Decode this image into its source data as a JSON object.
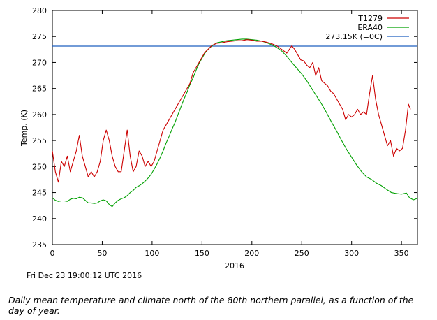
{
  "chart_data": {
    "type": "line",
    "title": "",
    "xlabel": "2016",
    "ylabel": "Temp. (K)",
    "xlim": [
      0,
      366
    ],
    "ylim": [
      235,
      280
    ],
    "xticks": [
      0,
      50,
      100,
      150,
      200,
      250,
      300,
      350
    ],
    "yticks": [
      235,
      240,
      245,
      250,
      255,
      260,
      265,
      270,
      275,
      280
    ],
    "grid": false,
    "legend_position": "top-right",
    "reference_line": {
      "name": "273.15K (=0C)",
      "value": 273.15,
      "color": "#1f5fbf"
    },
    "series": [
      {
        "name": "T1279",
        "color": "#cc0000",
        "points": [
          [
            0,
            253
          ],
          [
            3,
            249
          ],
          [
            6,
            247
          ],
          [
            9,
            251
          ],
          [
            12,
            250
          ],
          [
            15,
            252
          ],
          [
            18,
            249
          ],
          [
            21,
            251
          ],
          [
            24,
            253
          ],
          [
            27,
            256
          ],
          [
            30,
            252
          ],
          [
            33,
            250
          ],
          [
            36,
            248
          ],
          [
            39,
            249
          ],
          [
            42,
            248
          ],
          [
            45,
            249
          ],
          [
            48,
            251
          ],
          [
            51,
            255
          ],
          [
            54,
            257
          ],
          [
            57,
            255
          ],
          [
            60,
            252
          ],
          [
            63,
            250
          ],
          [
            66,
            249
          ],
          [
            69,
            249
          ],
          [
            72,
            253
          ],
          [
            75,
            257
          ],
          [
            78,
            252
          ],
          [
            81,
            249
          ],
          [
            84,
            250
          ],
          [
            87,
            253
          ],
          [
            90,
            252
          ],
          [
            93,
            250
          ],
          [
            96,
            251
          ],
          [
            99,
            250
          ],
          [
            102,
            251
          ],
          [
            105,
            253
          ],
          [
            108,
            255
          ],
          [
            111,
            257
          ],
          [
            114,
            258
          ],
          [
            117,
            259
          ],
          [
            120,
            260
          ],
          [
            123,
            261
          ],
          [
            126,
            262
          ],
          [
            129,
            263
          ],
          [
            132,
            264
          ],
          [
            135,
            265
          ],
          [
            138,
            266
          ],
          [
            141,
            268
          ],
          [
            144,
            269
          ],
          [
            147,
            270
          ],
          [
            150,
            271
          ],
          [
            153,
            272
          ],
          [
            156,
            272.5
          ],
          [
            160,
            273.3
          ],
          [
            165,
            273.7
          ],
          [
            170,
            273.8
          ],
          [
            175,
            274
          ],
          [
            180,
            274.1
          ],
          [
            185,
            274.2
          ],
          [
            190,
            274.2
          ],
          [
            195,
            274.4
          ],
          [
            200,
            274.3
          ],
          [
            205,
            274.1
          ],
          [
            210,
            274.1
          ],
          [
            215,
            273.9
          ],
          [
            220,
            273.6
          ],
          [
            225,
            273.2
          ],
          [
            230,
            272.5
          ],
          [
            235,
            271.8
          ],
          [
            240,
            273.2
          ],
          [
            243,
            272.5
          ],
          [
            246,
            271.5
          ],
          [
            249,
            270.5
          ],
          [
            252,
            270.3
          ],
          [
            255,
            269.5
          ],
          [
            258,
            269
          ],
          [
            261,
            270
          ],
          [
            264,
            267.5
          ],
          [
            267,
            269
          ],
          [
            270,
            266.5
          ],
          [
            273,
            266
          ],
          [
            276,
            265.5
          ],
          [
            279,
            264.5
          ],
          [
            282,
            264
          ],
          [
            285,
            263
          ],
          [
            288,
            262
          ],
          [
            291,
            261
          ],
          [
            294,
            259
          ],
          [
            297,
            260
          ],
          [
            300,
            259.5
          ],
          [
            303,
            260
          ],
          [
            306,
            261
          ],
          [
            309,
            260
          ],
          [
            312,
            260.5
          ],
          [
            315,
            260
          ],
          [
            318,
            264
          ],
          [
            321,
            267.5
          ],
          [
            324,
            263
          ],
          [
            327,
            260
          ],
          [
            330,
            258
          ],
          [
            333,
            256
          ],
          [
            336,
            254
          ],
          [
            339,
            255
          ],
          [
            342,
            252
          ],
          [
            345,
            253.5
          ],
          [
            348,
            253
          ],
          [
            351,
            253.5
          ],
          [
            354,
            257
          ],
          [
            357,
            262
          ],
          [
            359,
            261
          ]
        ]
      },
      {
        "name": "ERA40",
        "color": "#00a000",
        "points": [
          [
            0,
            244
          ],
          [
            3,
            243.5
          ],
          [
            6,
            243.3
          ],
          [
            9,
            243.4
          ],
          [
            12,
            243.4
          ],
          [
            15,
            243.3
          ],
          [
            18,
            243.7
          ],
          [
            21,
            243.9
          ],
          [
            24,
            243.8
          ],
          [
            27,
            244.1
          ],
          [
            30,
            244
          ],
          [
            33,
            243.5
          ],
          [
            36,
            243
          ],
          [
            39,
            243
          ],
          [
            42,
            242.9
          ],
          [
            45,
            243
          ],
          [
            48,
            243.4
          ],
          [
            51,
            243.6
          ],
          [
            54,
            243.4
          ],
          [
            57,
            242.7
          ],
          [
            60,
            242.3
          ],
          [
            63,
            243
          ],
          [
            66,
            243.5
          ],
          [
            69,
            243.8
          ],
          [
            72,
            244
          ],
          [
            75,
            244.4
          ],
          [
            78,
            245
          ],
          [
            81,
            245.4
          ],
          [
            84,
            246
          ],
          [
            87,
            246.3
          ],
          [
            90,
            246.7
          ],
          [
            93,
            247.2
          ],
          [
            96,
            247.8
          ],
          [
            99,
            248.5
          ],
          [
            102,
            249.5
          ],
          [
            105,
            250.5
          ],
          [
            108,
            251.7
          ],
          [
            111,
            253
          ],
          [
            114,
            254.5
          ],
          [
            117,
            255.8
          ],
          [
            120,
            257.2
          ],
          [
            123,
            258.5
          ],
          [
            126,
            260
          ],
          [
            129,
            261.5
          ],
          [
            132,
            263
          ],
          [
            135,
            264.3
          ],
          [
            138,
            265.8
          ],
          [
            141,
            267
          ],
          [
            144,
            268.5
          ],
          [
            147,
            269.8
          ],
          [
            150,
            270.8
          ],
          [
            153,
            271.8
          ],
          [
            156,
            272.5
          ],
          [
            160,
            273.2
          ],
          [
            165,
            273.8
          ],
          [
            170,
            274
          ],
          [
            175,
            274.2
          ],
          [
            180,
            274.3
          ],
          [
            185,
            274.4
          ],
          [
            190,
            274.5
          ],
          [
            195,
            274.5
          ],
          [
            200,
            274.4
          ],
          [
            205,
            274.3
          ],
          [
            210,
            274.1
          ],
          [
            215,
            273.8
          ],
          [
            220,
            273.4
          ],
          [
            225,
            272.9
          ],
          [
            230,
            272.2
          ],
          [
            235,
            271.2
          ],
          [
            240,
            270
          ],
          [
            245,
            268.9
          ],
          [
            250,
            267.8
          ],
          [
            255,
            266.5
          ],
          [
            260,
            265
          ],
          [
            265,
            263.5
          ],
          [
            270,
            262
          ],
          [
            275,
            260.3
          ],
          [
            280,
            258.5
          ],
          [
            285,
            256.8
          ],
          [
            290,
            255
          ],
          [
            295,
            253.3
          ],
          [
            300,
            251.8
          ],
          [
            305,
            250.3
          ],
          [
            310,
            249
          ],
          [
            315,
            248
          ],
          [
            320,
            247.5
          ],
          [
            325,
            246.8
          ],
          [
            330,
            246.3
          ],
          [
            335,
            245.6
          ],
          [
            340,
            245
          ],
          [
            345,
            244.8
          ],
          [
            350,
            244.7
          ],
          [
            355,
            244.9
          ],
          [
            358,
            244
          ],
          [
            362,
            243.6
          ],
          [
            366,
            243.9
          ]
        ]
      }
    ],
    "timestamp": "Fri Dec 23 19:00:12 UTC 2016"
  },
  "caption": "Daily mean temperature and climate north of the 80th northern parallel, as a function of the day of year."
}
